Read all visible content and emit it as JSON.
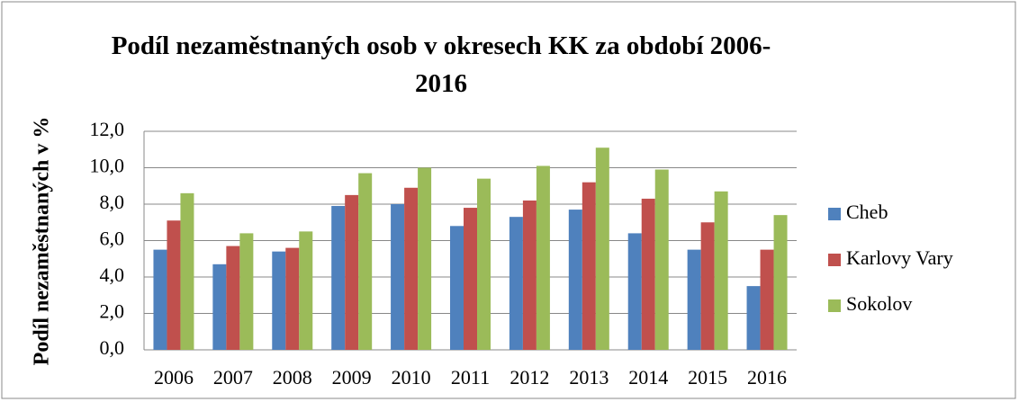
{
  "chart_data": {
    "type": "bar",
    "title": "Podíl nezaměstnaných osob v okresech KK za období 2006-2016",
    "y_label": "Podíl nezaměstnaných v %",
    "categories": [
      "2006",
      "2007",
      "2008",
      "2009",
      "2010",
      "2011",
      "2012",
      "2013",
      "2014",
      "2015",
      "2016"
    ],
    "series": [
      {
        "name": "Cheb",
        "color": "#4f81bd",
        "values": [
          5.5,
          4.7,
          5.4,
          7.9,
          8.0,
          6.8,
          7.3,
          7.7,
          6.4,
          5.5,
          3.5
        ]
      },
      {
        "name": "Karlovy Vary",
        "color": "#c0504d",
        "values": [
          7.1,
          5.7,
          5.6,
          8.5,
          8.9,
          7.8,
          8.2,
          9.2,
          8.3,
          7.0,
          5.5
        ]
      },
      {
        "name": "Sokolov",
        "color": "#9bbb59",
        "values": [
          8.6,
          6.4,
          6.5,
          9.7,
          10.0,
          9.4,
          10.1,
          11.1,
          9.9,
          8.7,
          7.4
        ]
      }
    ],
    "ylim": [
      0,
      12
    ],
    "yticks": [
      {
        "value": 0,
        "label": "0,0"
      },
      {
        "value": 2,
        "label": "2,0"
      },
      {
        "value": 4,
        "label": "4,0"
      },
      {
        "value": 6,
        "label": "6,0"
      },
      {
        "value": 8,
        "label": "8,0"
      },
      {
        "value": 10,
        "label": "10,0"
      },
      {
        "value": 12,
        "label": "12,0"
      }
    ],
    "grid": true,
    "legend": "right"
  }
}
